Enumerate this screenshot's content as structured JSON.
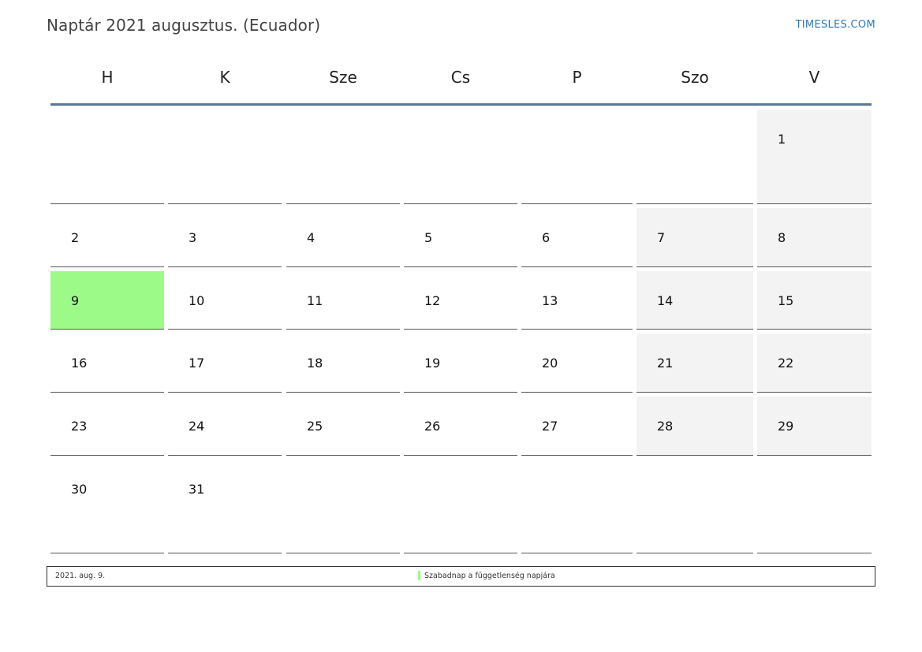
{
  "header": {
    "title": "Naptár 2021 augusztus. (Ecuador)",
    "brand": "TIMESLES.COM"
  },
  "weekdays": [
    "H",
    "K",
    "Sze",
    "Cs",
    "P",
    "Szo",
    "V"
  ],
  "weeks": [
    [
      "",
      "",
      "",
      "",
      "",
      "",
      "1"
    ],
    [
      "2",
      "3",
      "4",
      "5",
      "6",
      "7",
      "8"
    ],
    [
      "9",
      "10",
      "11",
      "12",
      "13",
      "14",
      "15"
    ],
    [
      "16",
      "17",
      "18",
      "19",
      "20",
      "21",
      "22"
    ],
    [
      "23",
      "24",
      "25",
      "26",
      "27",
      "28",
      "29"
    ],
    [
      "30",
      "31",
      "",
      "",
      "",
      "",
      ""
    ]
  ],
  "holiday_day": "9",
  "colors": {
    "holiday": "#9cfb88",
    "weekend": "#f3f3f3",
    "rule": "#5b7899",
    "brand": "#2a7ab8"
  },
  "legend": {
    "date": "2021. aug. 9.",
    "description": "Szabadnap a függetlenség napjára"
  }
}
